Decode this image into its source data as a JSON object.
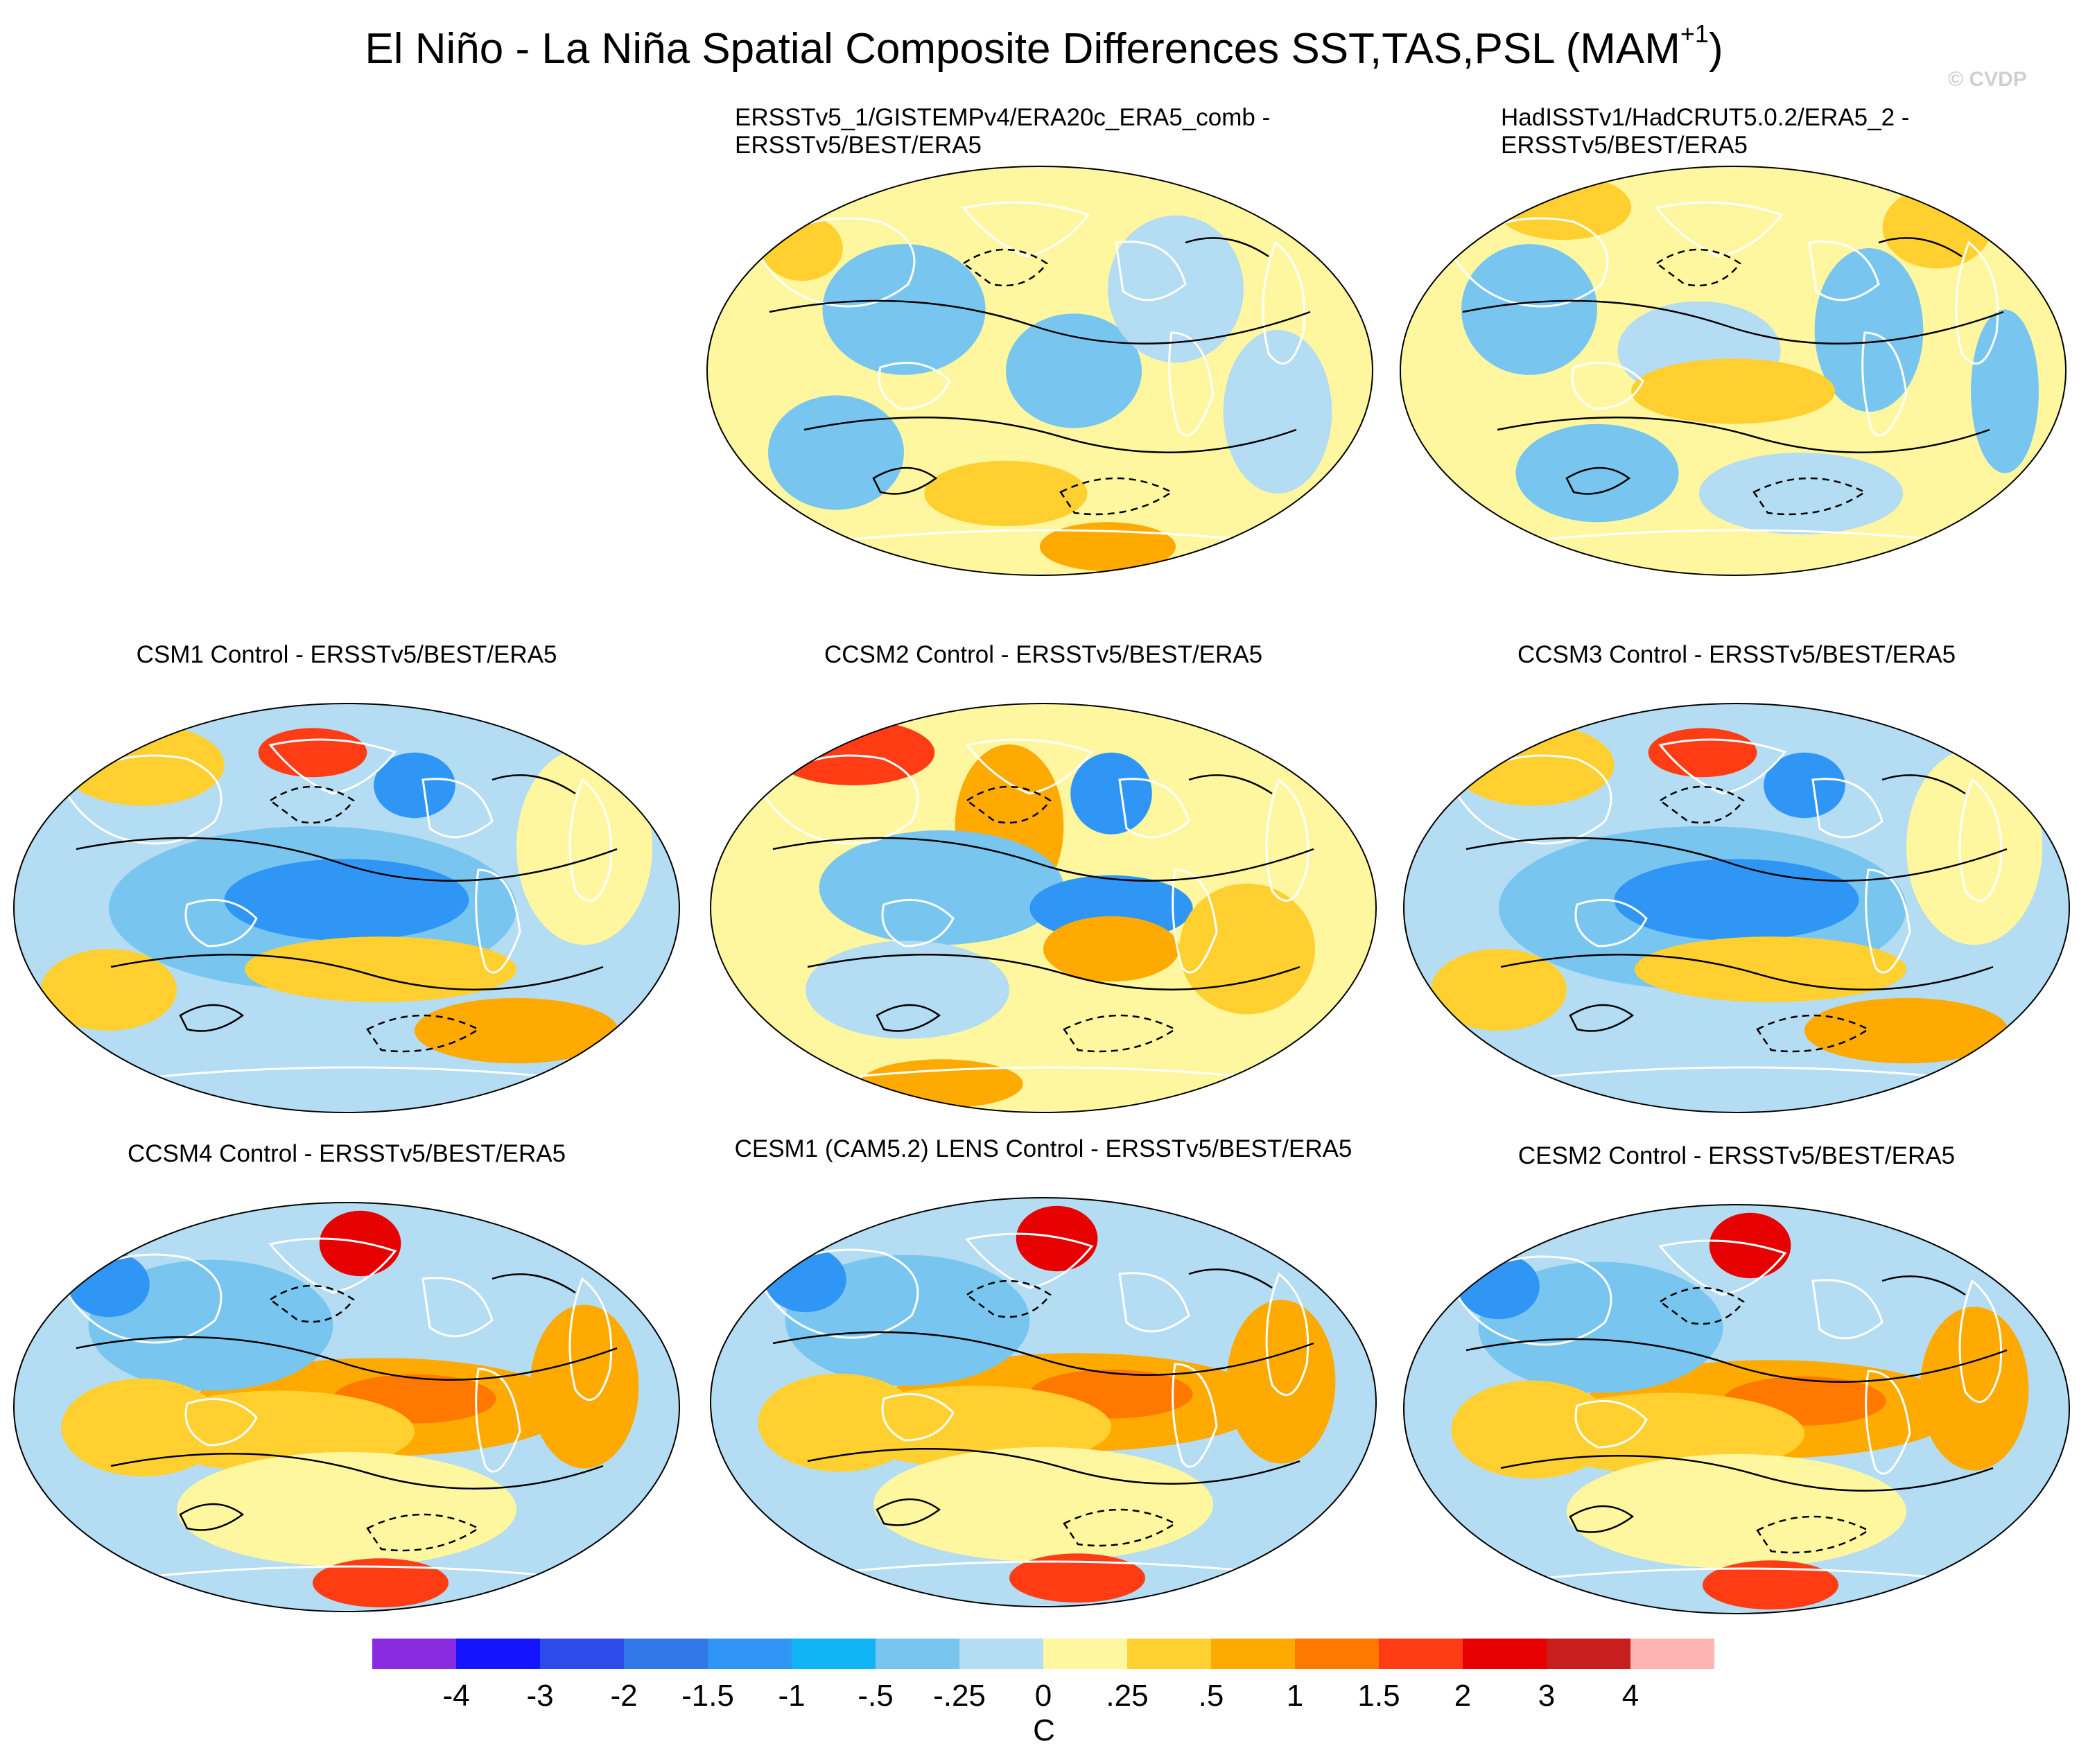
{
  "title": "El Niño - La Niña Spatial Composite Differences SST,TAS,PSL (MAM",
  "title_superscript": "+1",
  "title_close": ")",
  "credit": "© CVDP",
  "chart_data": [
    {
      "type": "heatmap",
      "title_lines": [
        "ERSSTv5_1/GISTEMPv4/ERA20c_ERA5_comb -",
        "ERSSTv5/BEST/ERA5"
      ],
      "projection": "Robinson, Pacific-centered",
      "variables": [
        "SST",
        "TAS",
        "PSL contours"
      ],
      "pattern": "weak"
    },
    {
      "type": "heatmap",
      "title_lines": [
        "HadISSTv1/HadCRUT5.0.2/ERA5_2 -",
        "ERSSTv5/BEST/ERA5"
      ],
      "projection": "Robinson, Pacific-centered",
      "variables": [
        "SST",
        "TAS",
        "PSL contours"
      ],
      "pattern": "noisy"
    },
    {
      "type": "heatmap",
      "title_lines": [
        "CSM1 Control - ERSSTv5/BEST/ERA5"
      ],
      "projection": "Robinson, Pacific-centered",
      "variables": [
        "SST",
        "TAS",
        "PSL contours"
      ],
      "pattern": "cool-tropics"
    },
    {
      "type": "heatmap",
      "title_lines": [
        "CCSM2 Control - ERSSTv5/BEST/ERA5"
      ],
      "projection": "Robinson, Pacific-centered",
      "variables": [
        "SST",
        "TAS",
        "PSL contours"
      ],
      "pattern": "mixed"
    },
    {
      "type": "heatmap",
      "title_lines": [
        "CCSM3 Control - ERSSTv5/BEST/ERA5"
      ],
      "projection": "Robinson, Pacific-centered",
      "variables": [
        "SST",
        "TAS",
        "PSL contours"
      ],
      "pattern": "cool-tropics"
    },
    {
      "type": "heatmap",
      "title_lines": [
        "CCSM4 Control - ERSSTv5/BEST/ERA5"
      ],
      "projection": "Robinson, Pacific-centered",
      "variables": [
        "SST",
        "TAS",
        "PSL contours"
      ],
      "pattern": "warm-tropics"
    },
    {
      "type": "heatmap",
      "title_lines": [
        "CESM1 (CAM5.2) LENS Control - ERSSTv5/BEST/ERA5"
      ],
      "projection": "Robinson, Pacific-centered",
      "variables": [
        "SST",
        "TAS",
        "PSL contours"
      ],
      "pattern": "warm-tropics"
    },
    {
      "type": "heatmap",
      "title_lines": [
        "CESM2 Control - ERSSTv5/BEST/ERA5"
      ],
      "projection": "Robinson, Pacific-centered",
      "variables": [
        "SST",
        "TAS",
        "PSL contours"
      ],
      "pattern": "warm-tropics"
    }
  ],
  "colorbar": {
    "units": "C",
    "tick_labels": [
      "-4",
      "-3",
      "-2",
      "-1.5",
      "-1",
      "-.5",
      "-.25",
      "0",
      ".25",
      ".5",
      "1",
      "1.5",
      "2",
      "3",
      "4"
    ],
    "levels": [
      -4,
      -3,
      -2,
      -1.5,
      -1,
      -0.5,
      -0.25,
      0,
      0.25,
      0.5,
      1,
      1.5,
      2,
      3,
      4
    ],
    "colors": [
      "#8a2be2",
      "#1414ff",
      "#2c4be8",
      "#3278e8",
      "#2f96f5",
      "#10b4f5",
      "#78c6f0",
      "#b4dcf2",
      "#fff7a0",
      "#ffd030",
      "#ffaa00",
      "#ff7800",
      "#ff3c14",
      "#e60000",
      "#c81e1e",
      "#ffb4b4"
    ]
  }
}
